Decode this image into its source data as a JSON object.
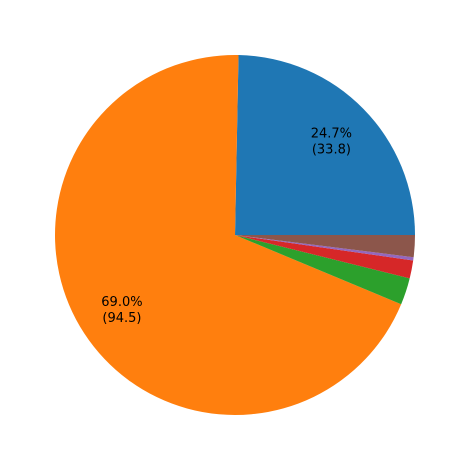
{
  "chart_data": {
    "type": "pie",
    "title": "",
    "start_angle_deg": 0,
    "direction": "counterclockwise",
    "slices": [
      {
        "value": 33.8,
        "percent_label": "24.7%",
        "value_label": "(33.8)",
        "color": "#1f77b4",
        "show_label": true
      },
      {
        "value": 94.5,
        "percent_label": "69.0%",
        "value_label": "(94.5)",
        "color": "#ff7f0e",
        "show_label": true
      },
      {
        "value": 3.3,
        "percent_label": "",
        "value_label": "",
        "color": "#2ca02c",
        "show_label": false
      },
      {
        "value": 2.2,
        "percent_label": "",
        "value_label": "",
        "color": "#d62728",
        "show_label": false
      },
      {
        "value": 0.4,
        "percent_label": "",
        "value_label": "",
        "color": "#9467bd",
        "show_label": false
      },
      {
        "value": 2.7,
        "percent_label": "",
        "value_label": "",
        "color": "#8c564b",
        "show_label": false
      }
    ]
  }
}
